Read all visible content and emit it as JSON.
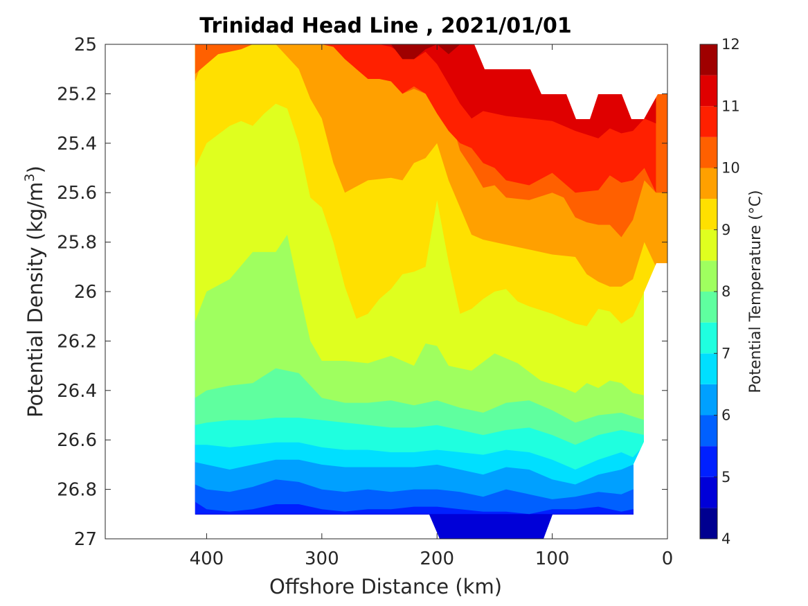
{
  "chart_data": {
    "type": "contour",
    "title": "Trinidad Head Line , 2021/01/01",
    "xlabel": "Offshore Distance (km)",
    "ylabel": "Potential Density (kg/m",
    "ylabel_superscript": "3",
    "ylabel_suffix": ")",
    "colorbar_label": "Potential Temperature (°C)",
    "x_axis": {
      "lim": [
        488,
        0
      ],
      "reversed": true,
      "ticks": [
        400,
        300,
        200,
        100,
        0
      ],
      "tick_labels": [
        "400",
        "300",
        "200",
        "100",
        "0"
      ]
    },
    "y_axis": {
      "lim": [
        25,
        27
      ],
      "reversed": true,
      "ticks": [
        25,
        25.2,
        25.4,
        25.6,
        25.8,
        26,
        26.2,
        26.4,
        26.6,
        26.8,
        27
      ],
      "tick_labels": [
        "25",
        "25.2",
        "25.4",
        "25.6",
        "25.8",
        "26",
        "26.2",
        "26.4",
        "26.6",
        "26.8",
        "27"
      ]
    },
    "colorbar": {
      "lim": [
        4,
        12
      ],
      "ticks": [
        4,
        5,
        6,
        7,
        8,
        9,
        10,
        11,
        12
      ],
      "tick_labels": [
        "4",
        "5",
        "6",
        "7",
        "8",
        "9",
        "10",
        "11",
        "12"
      ],
      "levels": [
        4,
        4.5,
        5,
        5.5,
        6,
        6.5,
        7,
        7.5,
        8,
        8.5,
        9,
        9.5,
        10,
        10.5,
        11,
        11.5,
        12
      ],
      "colors": [
        "#000090",
        "#0000d8",
        "#0020ff",
        "#0060ff",
        "#00a0ff",
        "#00dfff",
        "#1fffdf",
        "#5fff9f",
        "#9fff5f",
        "#dfff1f",
        "#ffe000",
        "#ffa000",
        "#ff6000",
        "#ff2000",
        "#df0000",
        "#9f0000"
      ]
    },
    "grid": false,
    "stations_x": [
      410,
      400,
      390,
      380,
      370,
      360,
      350,
      340,
      330,
      320,
      310,
      300,
      290,
      280,
      270,
      260,
      250,
      240,
      230,
      220,
      210,
      200,
      190,
      180,
      170,
      160,
      150,
      140,
      130,
      120,
      110,
      100,
      90,
      80,
      70,
      60,
      50,
      40,
      30,
      20,
      10
    ],
    "isolines": [
      {
        "level": 5.0,
        "x": [
          410,
          300,
          220,
          200,
          190,
          110,
          0
        ],
        "y": [
          26.9,
          26.9,
          26.9,
          26.9,
          26.9,
          26.9,
          26.9
        ]
      },
      {
        "level": 5.5,
        "x": [
          410,
          400,
          380,
          360,
          340,
          320,
          300,
          280,
          260,
          240,
          220,
          200,
          180,
          160,
          140,
          120,
          100,
          80,
          60,
          40,
          30
        ],
        "y": [
          26.85,
          26.88,
          26.89,
          26.88,
          26.86,
          26.86,
          26.88,
          26.89,
          26.88,
          26.88,
          26.87,
          26.87,
          26.88,
          26.89,
          26.89,
          26.9,
          26.88,
          26.88,
          26.87,
          26.89,
          26.88
        ]
      },
      {
        "level": 6.0,
        "x": [
          410,
          400,
          380,
          360,
          340,
          320,
          300,
          280,
          260,
          240,
          220,
          200,
          180,
          160,
          140,
          120,
          100,
          80,
          60,
          40,
          30
        ],
        "y": [
          26.78,
          26.8,
          26.81,
          26.79,
          26.76,
          26.77,
          26.8,
          26.81,
          26.8,
          26.81,
          26.8,
          26.8,
          26.81,
          26.83,
          26.8,
          26.82,
          26.84,
          26.83,
          26.81,
          26.82,
          26.8
        ]
      },
      {
        "level": 6.5,
        "x": [
          410,
          400,
          380,
          360,
          340,
          320,
          300,
          280,
          260,
          240,
          220,
          200,
          180,
          160,
          140,
          120,
          100,
          80,
          60,
          40,
          30
        ],
        "y": [
          26.69,
          26.7,
          26.72,
          26.7,
          26.68,
          26.68,
          26.7,
          26.71,
          26.71,
          26.71,
          26.71,
          26.7,
          26.72,
          26.74,
          26.71,
          26.72,
          26.76,
          26.78,
          26.74,
          26.72,
          26.7
        ]
      },
      {
        "level": 7.0,
        "x": [
          410,
          400,
          380,
          360,
          340,
          320,
          300,
          280,
          260,
          240,
          220,
          200,
          180,
          160,
          140,
          120,
          100,
          80,
          60,
          40,
          30,
          20
        ],
        "y": [
          26.62,
          26.62,
          26.63,
          26.62,
          26.61,
          26.61,
          26.63,
          26.64,
          26.64,
          26.65,
          26.65,
          26.64,
          26.65,
          26.66,
          26.64,
          26.65,
          26.68,
          26.72,
          26.68,
          26.65,
          26.67,
          26.62
        ]
      },
      {
        "level": 7.5,
        "x": [
          410,
          400,
          380,
          360,
          340,
          320,
          300,
          280,
          260,
          240,
          220,
          200,
          180,
          160,
          140,
          120,
          100,
          80,
          60,
          40,
          20
        ],
        "y": [
          26.54,
          26.53,
          26.52,
          26.52,
          26.51,
          26.51,
          26.52,
          26.53,
          26.54,
          26.55,
          26.55,
          26.54,
          26.56,
          26.58,
          26.56,
          26.55,
          26.58,
          26.62,
          26.58,
          26.56,
          26.58
        ]
      },
      {
        "level": 8.0,
        "x": [
          410,
          400,
          380,
          360,
          340,
          320,
          300,
          280,
          260,
          240,
          220,
          200,
          180,
          160,
          140,
          120,
          100,
          80,
          60,
          40,
          20
        ],
        "y": [
          26.43,
          26.4,
          26.38,
          26.37,
          26.31,
          26.33,
          26.43,
          26.45,
          26.45,
          26.44,
          26.46,
          26.44,
          26.47,
          26.49,
          26.45,
          26.44,
          26.48,
          26.53,
          26.5,
          26.49,
          26.52
        ]
      },
      {
        "level": 8.5,
        "x": [
          410,
          400,
          380,
          360,
          340,
          330,
          320,
          310,
          300,
          280,
          260,
          240,
          220,
          210,
          200,
          190,
          180,
          170,
          150,
          130,
          110,
          90,
          80,
          70,
          60,
          50,
          40,
          30,
          20
        ],
        "y": [
          26.12,
          26.0,
          25.95,
          25.84,
          25.84,
          25.77,
          25.99,
          26.2,
          26.28,
          26.28,
          26.29,
          26.26,
          26.3,
          26.21,
          26.22,
          26.3,
          26.31,
          26.32,
          26.25,
          26.29,
          26.36,
          26.39,
          26.41,
          26.37,
          26.39,
          26.36,
          26.37,
          26.41,
          26.42
        ]
      },
      {
        "level": 9.0,
        "x": [
          410,
          400,
          380,
          370,
          360,
          350,
          340,
          330,
          320,
          310,
          300,
          290,
          280,
          270,
          260,
          250,
          240,
          230,
          220,
          210,
          200,
          190,
          180,
          170,
          160,
          150,
          140,
          130,
          120,
          100,
          80,
          70,
          60,
          50,
          40,
          30,
          20
        ],
        "y": [
          25.5,
          25.4,
          25.33,
          25.31,
          25.33,
          25.28,
          25.24,
          25.26,
          25.4,
          25.62,
          25.66,
          25.8,
          25.98,
          26.11,
          26.09,
          26.03,
          25.99,
          25.93,
          25.92,
          25.9,
          25.63,
          25.88,
          26.09,
          26.07,
          26.03,
          26.0,
          25.99,
          26.04,
          26.06,
          26.09,
          26.13,
          26.14,
          26.07,
          26.08,
          26.13,
          26.1,
          26.0
        ]
      },
      {
        "level": 9.5,
        "x": [
          410,
          400,
          380,
          360,
          340,
          320,
          310,
          300,
          290,
          280,
          260,
          240,
          230,
          220,
          210,
          200,
          190,
          180,
          170,
          160,
          140,
          120,
          100,
          80,
          70,
          60,
          50,
          40,
          30,
          20,
          10
        ],
        "y": [
          25.15,
          25.02,
          25.0,
          25.0,
          25.0,
          25.1,
          25.22,
          25.3,
          25.48,
          25.6,
          25.55,
          25.54,
          25.55,
          25.48,
          25.46,
          25.4,
          25.55,
          25.66,
          25.77,
          25.79,
          25.81,
          25.83,
          25.85,
          25.86,
          25.93,
          25.96,
          25.98,
          25.98,
          25.95,
          25.8,
          25.9
        ]
      },
      {
        "level": 10.0,
        "x": [
          410,
          390,
          370,
          360,
          350,
          330,
          310,
          290,
          280,
          260,
          240,
          230,
          220,
          210,
          200,
          190,
          180,
          170,
          160,
          150,
          140,
          120,
          100,
          90,
          80,
          70,
          60,
          50,
          40,
          30,
          20,
          10
        ],
        "y": [
          25.12,
          25.04,
          25.02,
          25.0,
          25.0,
          25.0,
          25.0,
          25.0,
          25.06,
          25.08,
          25.14,
          25.2,
          25.18,
          25.2,
          25.2,
          25.27,
          25.43,
          25.5,
          25.58,
          25.57,
          25.62,
          25.63,
          25.6,
          25.62,
          25.7,
          25.72,
          25.73,
          25.73,
          25.78,
          25.71,
          25.55,
          25.6
        ]
      },
      {
        "level": 10.5,
        "x": [
          310,
          300,
          290,
          280,
          270,
          260,
          250,
          240,
          230,
          220,
          210,
          200,
          190,
          180,
          170,
          160,
          150,
          140,
          120,
          100,
          80,
          60,
          50,
          40,
          30,
          20,
          10
        ],
        "y": [
          25.0,
          25.0,
          25.01,
          25.06,
          25.1,
          25.14,
          25.14,
          25.15,
          25.2,
          25.17,
          25.2,
          25.28,
          25.35,
          25.4,
          25.42,
          25.48,
          25.5,
          25.55,
          25.57,
          25.52,
          25.6,
          25.59,
          25.53,
          25.56,
          25.55,
          25.5,
          25.6
        ]
      },
      {
        "level": 11.0,
        "x": [
          290,
          270,
          250,
          240,
          230,
          220,
          210,
          200,
          190,
          180,
          170,
          160,
          140,
          120,
          100,
          80,
          60,
          50,
          40,
          30,
          20,
          10
        ],
        "y": [
          25.0,
          25.0,
          25.0,
          25.01,
          25.04,
          25.06,
          25.03,
          25.08,
          25.16,
          25.24,
          25.3,
          25.27,
          25.29,
          25.3,
          25.31,
          25.35,
          25.38,
          25.34,
          25.36,
          25.35,
          25.3,
          25.32
        ]
      },
      {
        "level": 11.5,
        "x": [
          250,
          240,
          230,
          220,
          210,
          200,
          190,
          180
        ],
        "y": [
          25.0,
          25.0,
          25.06,
          25.06,
          25.02,
          25.0,
          25.04,
          25.0
        ]
      }
    ]
  }
}
